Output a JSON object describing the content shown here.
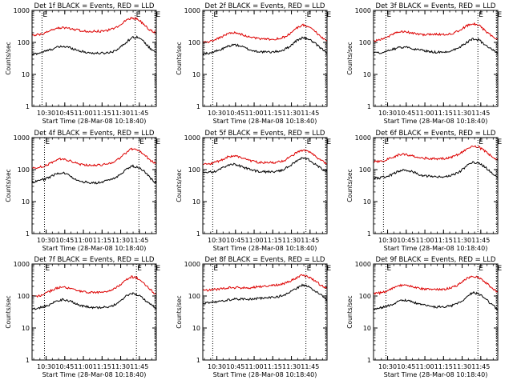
{
  "chart_data": {
    "type": "line",
    "yscale": "log",
    "ylim": [
      1,
      1000
    ],
    "yticks": [
      "1",
      "10",
      "100",
      "1000"
    ],
    "ylabel": "Counts/sec",
    "xlabel": "Start Time (28-Mar-08 10:18:40)",
    "xlim_minutes_after_start": [
      0,
      100
    ],
    "xtick_labels": [
      "10:30",
      "10:45",
      "11:00",
      "11:15",
      "11:30",
      "11:45"
    ],
    "xtick_minutes_after_start": [
      11.33,
      26.33,
      41.33,
      56.33,
      71.33,
      86.33
    ],
    "vline_label": "E",
    "panels": [
      {
        "title": "Det 1f BLACK = Events, RED = LLD",
        "vlines_minutes": [
          8,
          83,
          99
        ],
        "series": [
          {
            "name": "BLACK = Events",
            "color": "#000000",
            "x": [
              0,
              5,
              10,
              15,
              20,
              25,
              30,
              35,
              40,
              45,
              50,
              55,
              60,
              65,
              70,
              75,
              80,
              85,
              90,
              95,
              100
            ],
            "y": [
              42,
              46,
              52,
              60,
              70,
              75,
              70,
              60,
              52,
              48,
              46,
              46,
              47,
              52,
              65,
              95,
              140,
              150,
              105,
              65,
              50
            ]
          },
          {
            "name": "RED = LLD",
            "color": "#dd0000",
            "x": [
              0,
              5,
              10,
              15,
              20,
              25,
              30,
              35,
              40,
              45,
              50,
              55,
              60,
              65,
              70,
              75,
              80,
              85,
              90,
              95,
              100
            ],
            "y": [
              165,
              175,
              195,
              240,
              275,
              290,
              275,
              250,
              230,
              225,
              225,
              225,
              235,
              265,
              340,
              470,
              590,
              540,
              370,
              240,
              200
            ]
          }
        ]
      },
      {
        "title": "Det 2f BLACK = Events, RED = LLD",
        "vlines_minutes": [
          8,
          83,
          99
        ],
        "series": [
          {
            "name": "BLACK = Events",
            "color": "#000000",
            "x": [
              0,
              5,
              10,
              15,
              20,
              25,
              30,
              35,
              40,
              45,
              50,
              55,
              60,
              65,
              70,
              75,
              80,
              85,
              90,
              95,
              100
            ],
            "y": [
              45,
              46,
              52,
              60,
              75,
              85,
              78,
              65,
              55,
              52,
              50,
              50,
              52,
              58,
              75,
              110,
              140,
              130,
              95,
              65,
              48
            ]
          },
          {
            "name": "RED = LLD",
            "color": "#dd0000",
            "x": [
              0,
              5,
              10,
              15,
              20,
              25,
              30,
              35,
              40,
              45,
              50,
              55,
              60,
              65,
              70,
              75,
              80,
              85,
              90,
              95,
              100
            ],
            "y": [
              100,
              105,
              120,
              150,
              185,
              200,
              185,
              160,
              140,
              130,
              125,
              125,
              130,
              145,
              185,
              270,
              350,
              320,
              230,
              150,
              110
            ]
          }
        ]
      },
      {
        "title": "Det 3f BLACK = Events, RED = LLD",
        "vlines_minutes": [
          10,
          84,
          99
        ],
        "series": [
          {
            "name": "BLACK = Events",
            "color": "#000000",
            "x": [
              0,
              5,
              10,
              15,
              20,
              25,
              30,
              35,
              40,
              45,
              50,
              55,
              60,
              65,
              70,
              75,
              80,
              85,
              90,
              95,
              100
            ],
            "y": [
              45,
              48,
              52,
              60,
              70,
              72,
              66,
              60,
              55,
              52,
              50,
              50,
              52,
              60,
              75,
              100,
              130,
              120,
              80,
              60,
              45
            ]
          },
          {
            "name": "RED = LLD",
            "color": "#dd0000",
            "x": [
              0,
              5,
              10,
              15,
              20,
              25,
              30,
              35,
              40,
              45,
              50,
              55,
              60,
              65,
              70,
              75,
              80,
              85,
              90,
              95,
              100
            ],
            "y": [
              110,
              120,
              140,
              180,
              210,
              215,
              200,
              185,
              170,
              175,
              180,
              175,
              180,
              200,
              250,
              330,
              400,
              330,
              230,
              160,
              120
            ]
          }
        ]
      },
      {
        "title": "Det 4f BLACK = Events, RED = LLD",
        "vlines_minutes": [
          10,
          86,
          99
        ],
        "series": [
          {
            "name": "BLACK = Events",
            "color": "#000000",
            "x": [
              0,
              5,
              10,
              15,
              20,
              25,
              30,
              35,
              40,
              45,
              50,
              55,
              60,
              65,
              70,
              75,
              80,
              85,
              90,
              95,
              100
            ],
            "y": [
              40,
              45,
              50,
              60,
              75,
              80,
              65,
              50,
              42,
              40,
              38,
              40,
              45,
              52,
              65,
              95,
              130,
              120,
              90,
              55,
              38
            ]
          },
          {
            "name": "RED = LLD",
            "color": "#dd0000",
            "x": [
              0,
              5,
              10,
              15,
              20,
              25,
              30,
              35,
              40,
              45,
              50,
              55,
              60,
              65,
              70,
              75,
              80,
              85,
              90,
              95,
              100
            ],
            "y": [
              110,
              120,
              130,
              160,
              205,
              220,
              190,
              160,
              145,
              140,
              135,
              140,
              150,
              170,
              220,
              320,
              450,
              420,
              300,
              200,
              150
            ]
          }
        ]
      },
      {
        "title": "Det 5f BLACK = Events, RED = LLD",
        "vlines_minutes": [
          8,
          83,
          99
        ],
        "series": [
          {
            "name": "BLACK = Events",
            "color": "#000000",
            "x": [
              0,
              5,
              10,
              15,
              20,
              25,
              30,
              35,
              40,
              45,
              50,
              55,
              60,
              65,
              70,
              75,
              80,
              85,
              90,
              95,
              100
            ],
            "y": [
              80,
              82,
              90,
              110,
              135,
              145,
              130,
              110,
              95,
              88,
              85,
              85,
              88,
              100,
              130,
              180,
              230,
              210,
              150,
              110,
              85
            ]
          },
          {
            "name": "RED = LLD",
            "color": "#dd0000",
            "x": [
              0,
              5,
              10,
              15,
              20,
              25,
              30,
              35,
              40,
              45,
              50,
              55,
              60,
              65,
              70,
              75,
              80,
              85,
              90,
              95,
              100
            ],
            "y": [
              150,
              150,
              165,
              200,
              250,
              270,
              245,
              210,
              185,
              170,
              165,
              165,
              170,
              190,
              240,
              330,
              400,
              370,
              270,
              190,
              155
            ]
          }
        ]
      },
      {
        "title": "Det 6f BLACK = Events, RED = LLD",
        "vlines_minutes": [
          8,
          84,
          99
        ],
        "series": [
          {
            "name": "BLACK = Events",
            "color": "#000000",
            "x": [
              0,
              5,
              10,
              15,
              20,
              25,
              30,
              35,
              40,
              45,
              50,
              55,
              60,
              65,
              70,
              75,
              80,
              85,
              90,
              95,
              100
            ],
            "y": [
              55,
              55,
              60,
              70,
              90,
              100,
              90,
              75,
              65,
              62,
              60,
              60,
              62,
              70,
              90,
              130,
              170,
              160,
              120,
              80,
              55
            ]
          },
          {
            "name": "RED = LLD",
            "color": "#dd0000",
            "x": [
              0,
              5,
              10,
              15,
              20,
              25,
              30,
              35,
              40,
              45,
              50,
              55,
              60,
              65,
              70,
              75,
              80,
              85,
              90,
              95,
              100
            ],
            "y": [
              180,
              180,
              200,
              240,
              290,
              300,
              280,
              250,
              230,
              225,
              220,
              220,
              230,
              260,
              330,
              450,
              560,
              500,
              370,
              260,
              200
            ]
          }
        ]
      },
      {
        "title": "Det 7f BLACK = Events, RED = LLD",
        "vlines_minutes": [
          10,
          84,
          99
        ],
        "series": [
          {
            "name": "BLACK = Events",
            "color": "#000000",
            "x": [
              0,
              5,
              10,
              15,
              20,
              25,
              30,
              35,
              40,
              45,
              50,
              55,
              60,
              65,
              70,
              75,
              80,
              85,
              90,
              95,
              100
            ],
            "y": [
              40,
              42,
              48,
              55,
              70,
              78,
              70,
              58,
              50,
              46,
              44,
              44,
              45,
              50,
              65,
              95,
              120,
              110,
              80,
              55,
              42
            ]
          },
          {
            "name": "RED = LLD",
            "color": "#dd0000",
            "x": [
              0,
              5,
              10,
              15,
              20,
              25,
              30,
              35,
              40,
              45,
              50,
              55,
              60,
              65,
              70,
              75,
              80,
              85,
              90,
              95,
              100
            ],
            "y": [
              95,
              100,
              115,
              145,
              180,
              195,
              175,
              150,
              135,
              130,
              130,
              130,
              135,
              155,
              205,
              300,
              400,
              360,
              250,
              160,
              110
            ]
          }
        ]
      },
      {
        "title": "Det 8f BLACK = Events, RED = LLD",
        "vlines_minutes": [
          8,
          83,
          99
        ],
        "series": [
          {
            "name": "BLACK = Events",
            "color": "#000000",
            "x": [
              0,
              5,
              10,
              15,
              20,
              25,
              30,
              35,
              40,
              45,
              50,
              55,
              60,
              65,
              70,
              75,
              80,
              85,
              90,
              95,
              100
            ],
            "y": [
              60,
              62,
              65,
              70,
              75,
              80,
              80,
              78,
              80,
              85,
              88,
              90,
              95,
              105,
              130,
              170,
              220,
              200,
              150,
              110,
              75
            ]
          },
          {
            "name": "RED = LLD",
            "color": "#dd0000",
            "x": [
              0,
              5,
              10,
              15,
              20,
              25,
              30,
              35,
              40,
              45,
              50,
              55,
              60,
              65,
              70,
              75,
              80,
              85,
              90,
              95,
              100
            ],
            "y": [
              150,
              155,
              160,
              170,
              180,
              185,
              180,
              180,
              185,
              195,
              205,
              215,
              225,
              245,
              290,
              370,
              450,
              400,
              300,
              220,
              170
            ]
          }
        ]
      },
      {
        "title": "Det 9f BLACK = Events, RED = LLD",
        "vlines_minutes": [
          10,
          84,
          99
        ],
        "series": [
          {
            "name": "BLACK = Events",
            "color": "#000000",
            "x": [
              0,
              5,
              10,
              15,
              20,
              25,
              30,
              35,
              40,
              45,
              50,
              55,
              60,
              65,
              70,
              75,
              80,
              85,
              90,
              95,
              100
            ],
            "y": [
              40,
              42,
              48,
              55,
              68,
              75,
              68,
              58,
              52,
              48,
              46,
              46,
              48,
              52,
              65,
              95,
              130,
              115,
              85,
              55,
              38
            ]
          },
          {
            "name": "RED = LLD",
            "color": "#dd0000",
            "x": [
              0,
              5,
              10,
              15,
              20,
              25,
              30,
              35,
              40,
              45,
              50,
              55,
              60,
              65,
              70,
              75,
              80,
              85,
              90,
              95,
              100
            ],
            "y": [
              120,
              125,
              140,
              170,
              210,
              220,
              200,
              180,
              165,
              160,
              160,
              160,
              170,
              195,
              250,
              350,
              420,
              380,
              270,
              180,
              130
            ]
          }
        ]
      }
    ]
  }
}
